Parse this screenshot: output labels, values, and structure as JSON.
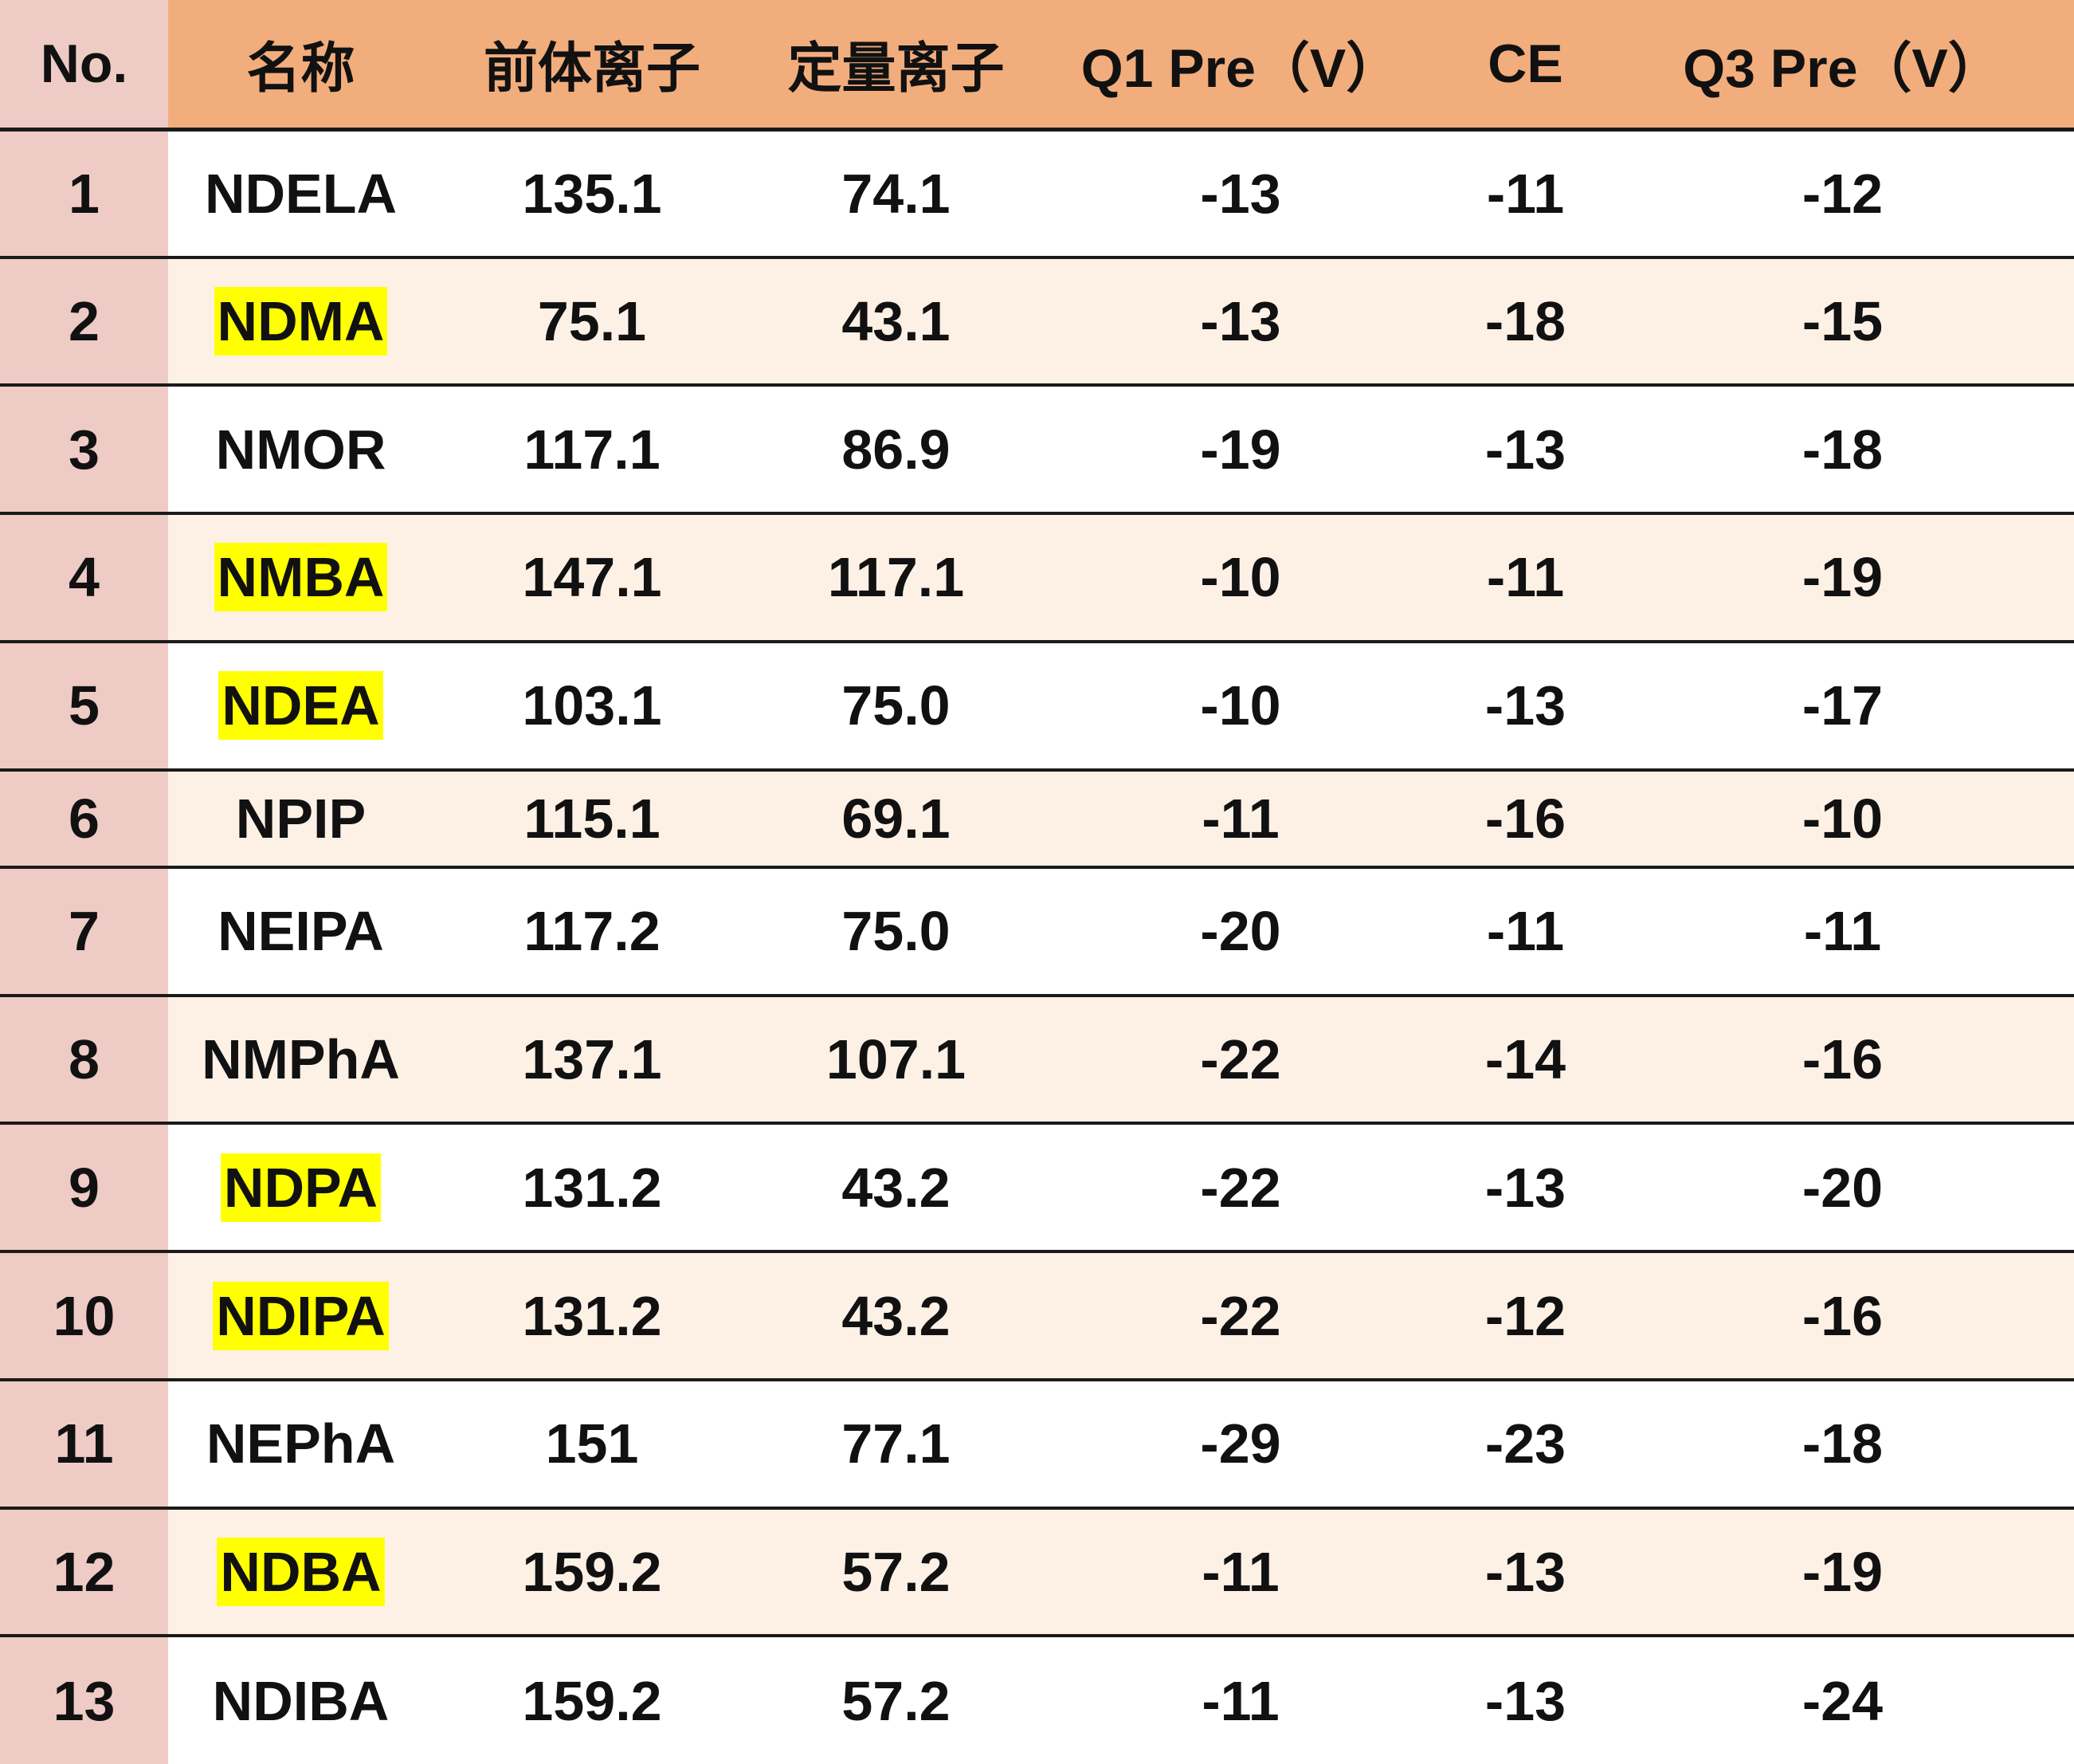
{
  "table": {
    "headers": [
      "No.",
      "名称",
      "前体离子",
      "定量离子",
      "Q1 Pre（V）",
      "CE",
      "Q3 Pre（V）"
    ],
    "rows": [
      {
        "no": "1",
        "name": "NDELA",
        "highlight": false,
        "precursor": "135.1",
        "quant": "74.1",
        "q1": "-13",
        "ce": "-11",
        "q3": "-12"
      },
      {
        "no": "2",
        "name": "NDMA",
        "highlight": true,
        "precursor": "75.1",
        "quant": "43.1",
        "q1": "-13",
        "ce": "-18",
        "q3": "-15"
      },
      {
        "no": "3",
        "name": "NMOR",
        "highlight": false,
        "precursor": "117.1",
        "quant": "86.9",
        "q1": "-19",
        "ce": "-13",
        "q3": "-18"
      },
      {
        "no": "4",
        "name": "NMBA",
        "highlight": true,
        "precursor": "147.1",
        "quant": "117.1",
        "q1": "-10",
        "ce": "-11",
        "q3": "-19"
      },
      {
        "no": "5",
        "name": "NDEA",
        "highlight": true,
        "precursor": "103.1",
        "quant": "75.0",
        "q1": "-10",
        "ce": "-13",
        "q3": "-17"
      },
      {
        "no": "6",
        "name": "NPIP",
        "highlight": false,
        "precursor": "115.1",
        "quant": "69.1",
        "q1": "-11",
        "ce": "-16",
        "q3": "-10"
      },
      {
        "no": "7",
        "name": "NEIPA",
        "highlight": false,
        "precursor": "117.2",
        "quant": "75.0",
        "q1": "-20",
        "ce": "-11",
        "q3": "-11"
      },
      {
        "no": "8",
        "name": "NMPhA",
        "highlight": false,
        "precursor": "137.1",
        "quant": "107.1",
        "q1": "-22",
        "ce": "-14",
        "q3": "-16"
      },
      {
        "no": "9",
        "name": "NDPA",
        "highlight": true,
        "precursor": "131.2",
        "quant": "43.2",
        "q1": "-22",
        "ce": "-13",
        "q3": "-20"
      },
      {
        "no": "10",
        "name": "NDIPA",
        "highlight": true,
        "precursor": "131.2",
        "quant": "43.2",
        "q1": "-22",
        "ce": "-12",
        "q3": "-16"
      },
      {
        "no": "11",
        "name": "NEPhA",
        "highlight": false,
        "precursor": "151",
        "quant": "77.1",
        "q1": "-29",
        "ce": "-23",
        "q3": "-18"
      },
      {
        "no": "12",
        "name": "NDBA",
        "highlight": true,
        "precursor": "159.2",
        "quant": "57.2",
        "q1": "-11",
        "ce": "-13",
        "q3": "-19"
      },
      {
        "no": "13",
        "name": "NDIBA",
        "highlight": false,
        "precursor": "159.2",
        "quant": "57.2",
        "q1": "-11",
        "ce": "-13",
        "q3": "-24"
      }
    ]
  },
  "colors": {
    "header_bg": "#f2ad7c",
    "no_column_bg": "#eecbc4",
    "even_row_bg": "#fdf1e6",
    "highlight": "#ffff00"
  }
}
